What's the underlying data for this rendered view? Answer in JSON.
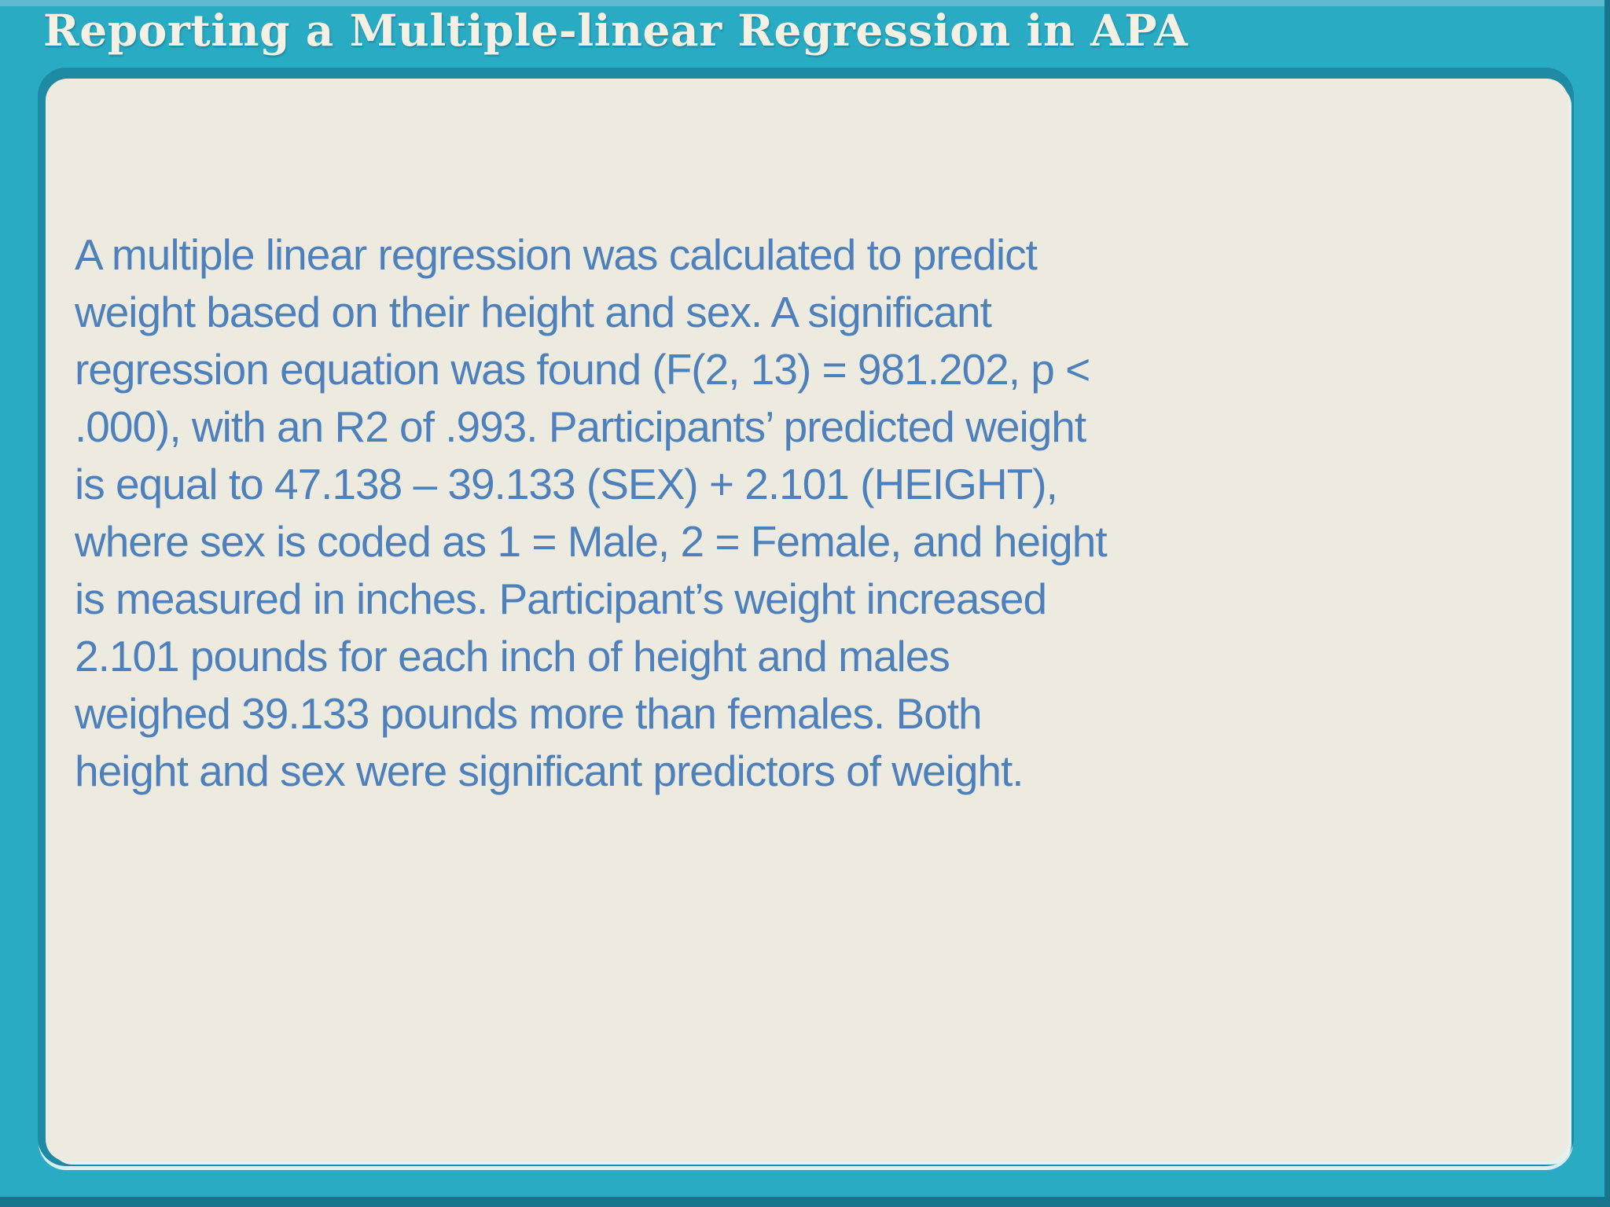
{
  "slide": {
    "title": "Reporting a Multiple-linear Regression in APA",
    "body_lines": [
      "A multiple linear regression was calculated to predict",
      "weight based on their height and sex. A significant",
      "regression equation was found (F(2, 13) = 981.202, p <",
      ".000), with an R2 of .993. Participants’ predicted weight",
      "is equal to 47.138 – 39.133 (SEX) + 2.101 (HEIGHT),",
      "where sex is coded as 1 = Male, 2 = Female, and height",
      "is measured in inches. Participant’s weight increased",
      "2.101 pounds for each inch of height and males",
      "weighed 39.133 pounds more than females. Both",
      "height and sex were significant predictors of weight."
    ]
  },
  "colors": {
    "frame_teal": "#29ABC4",
    "frame_top_highlight": "#5FBAD0",
    "frame_bottom_shadow": "#17768D",
    "panel_rim": "#1E8AA3",
    "panel_bg": "#EDEADF",
    "title_color": "#F4F0E3",
    "body_text_color": "#4E81BC"
  }
}
